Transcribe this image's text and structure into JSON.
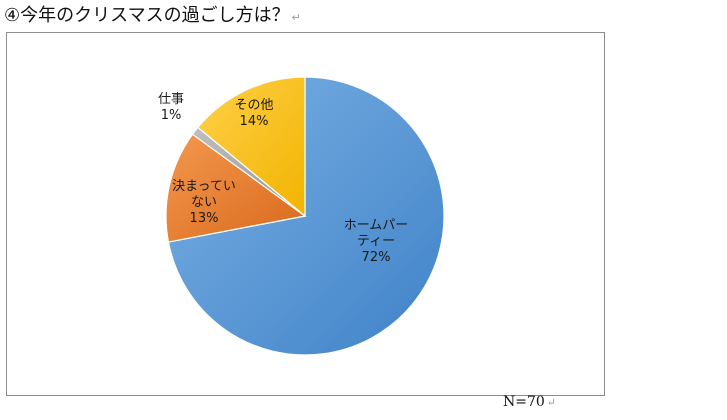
{
  "heading": {
    "text": "④今年のクリスマスの過ごし方は？",
    "para_mark": "↵"
  },
  "chart_data": {
    "type": "pie",
    "title": "",
    "start_angle_deg": 0,
    "direction": "clockwise",
    "slices": [
      {
        "label_lines": [
          "ホームパー",
          "ティー"
        ],
        "value": 72,
        "value_label": "72%",
        "color": "#5b9bd5"
      },
      {
        "label_lines": [
          "決まってい",
          "ない"
        ],
        "value": 13,
        "value_label": "13%",
        "color": "#ed7d31"
      },
      {
        "label_lines": [
          "仕事"
        ],
        "value": 1,
        "value_label": "1%",
        "color": "#a5a5a5"
      },
      {
        "label_lines": [
          "その他"
        ],
        "value": 14,
        "value_label": "14%",
        "color": "#ffc000"
      }
    ]
  },
  "note": {
    "text": "N=70",
    "para_mark": "↵"
  }
}
